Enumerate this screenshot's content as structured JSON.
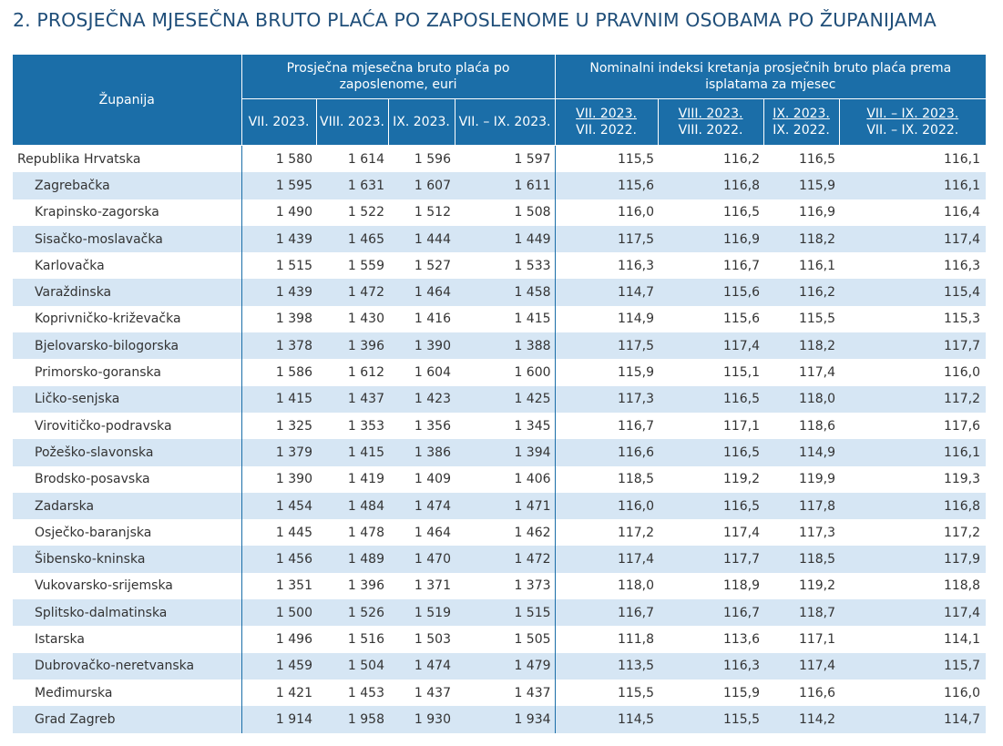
{
  "title": "2. PROSJEČNA MJESEČNA BRUTO PLAĆA PO ZAPOSLENOME U PRAVNIM OSOBAMA PO ŽUPANIJAMA",
  "colors": {
    "header_bg": "#1b6ea8",
    "stripe": "#d6e6f4",
    "title": "#1f4e79"
  },
  "header": {
    "county": "Županija",
    "group_wage": "Prosječna mjesečna bruto plaća po zaposlenome, euri",
    "group_index": "Nominalni indeksi kretanja prosječnih bruto plaća prema isplatama za mjesec",
    "wage_cols": [
      "VII. 2023.",
      "VIII. 2023.",
      "IX. 2023.",
      "VII. – IX. 2023."
    ],
    "index_cols": [
      {
        "num": "VII. 2023.",
        "den": "VII. 2022."
      },
      {
        "num": "VIII. 2023.",
        "den": "VIII. 2022."
      },
      {
        "num": "IX. 2023.",
        "den": "IX. 2022."
      },
      {
        "num": "VII. – IX. 2023.",
        "den": "VII. – IX. 2022."
      }
    ]
  },
  "rows": [
    {
      "name": "Republika Hrvatska",
      "w": [
        "1 580",
        "1 614",
        "1 596",
        "1 597"
      ],
      "i": [
        "115,5",
        "116,2",
        "116,5",
        "116,1"
      ]
    },
    {
      "name": "Zagrebačka",
      "w": [
        "1 595",
        "1 631",
        "1 607",
        "1 611"
      ],
      "i": [
        "115,6",
        "116,8",
        "115,9",
        "116,1"
      ]
    },
    {
      "name": "Krapinsko-zagorska",
      "w": [
        "1 490",
        "1 522",
        "1 512",
        "1 508"
      ],
      "i": [
        "116,0",
        "116,5",
        "116,9",
        "116,4"
      ]
    },
    {
      "name": "Sisačko-moslavačka",
      "w": [
        "1 439",
        "1 465",
        "1 444",
        "1 449"
      ],
      "i": [
        "117,5",
        "116,9",
        "118,2",
        "117,4"
      ]
    },
    {
      "name": "Karlovačka",
      "w": [
        "1 515",
        "1 559",
        "1 527",
        "1 533"
      ],
      "i": [
        "116,3",
        "116,7",
        "116,1",
        "116,3"
      ]
    },
    {
      "name": "Varaždinska",
      "w": [
        "1 439",
        "1 472",
        "1 464",
        "1 458"
      ],
      "i": [
        "114,7",
        "115,6",
        "116,2",
        "115,4"
      ]
    },
    {
      "name": "Koprivničko-križevačka",
      "w": [
        "1 398",
        "1 430",
        "1 416",
        "1 415"
      ],
      "i": [
        "114,9",
        "115,6",
        "115,5",
        "115,3"
      ]
    },
    {
      "name": "Bjelovarsko-bilogorska",
      "w": [
        "1 378",
        "1 396",
        "1 390",
        "1 388"
      ],
      "i": [
        "117,5",
        "117,4",
        "118,2",
        "117,7"
      ]
    },
    {
      "name": "Primorsko-goranska",
      "w": [
        "1 586",
        "1 612",
        "1 604",
        "1 600"
      ],
      "i": [
        "115,9",
        "115,1",
        "117,4",
        "116,0"
      ]
    },
    {
      "name": "Ličko-senjska",
      "w": [
        "1 415",
        "1 437",
        "1 423",
        "1 425"
      ],
      "i": [
        "117,3",
        "116,5",
        "118,0",
        "117,2"
      ]
    },
    {
      "name": "Virovitičko-podravska",
      "w": [
        "1 325",
        "1 353",
        "1 356",
        "1 345"
      ],
      "i": [
        "116,7",
        "117,1",
        "118,6",
        "117,6"
      ]
    },
    {
      "name": "Požeško-slavonska",
      "w": [
        "1 379",
        "1 415",
        "1 386",
        "1 394"
      ],
      "i": [
        "116,6",
        "116,5",
        "114,9",
        "116,1"
      ]
    },
    {
      "name": "Brodsko-posavska",
      "w": [
        "1 390",
        "1 419",
        "1 409",
        "1 406"
      ],
      "i": [
        "118,5",
        "119,2",
        "119,9",
        "119,3"
      ]
    },
    {
      "name": "Zadarska",
      "w": [
        "1 454",
        "1 484",
        "1 474",
        "1 471"
      ],
      "i": [
        "116,0",
        "116,5",
        "117,8",
        "116,8"
      ]
    },
    {
      "name": "Osječko-baranjska",
      "w": [
        "1 445",
        "1 478",
        "1 464",
        "1 462"
      ],
      "i": [
        "117,2",
        "117,4",
        "117,3",
        "117,2"
      ]
    },
    {
      "name": "Šibensko-kninska",
      "w": [
        "1 456",
        "1 489",
        "1 470",
        "1 472"
      ],
      "i": [
        "117,4",
        "117,7",
        "118,5",
        "117,9"
      ]
    },
    {
      "name": "Vukovarsko-srijemska",
      "w": [
        "1 351",
        "1 396",
        "1 371",
        "1 373"
      ],
      "i": [
        "118,0",
        "118,9",
        "119,2",
        "118,8"
      ]
    },
    {
      "name": "Splitsko-dalmatinska",
      "w": [
        "1 500",
        "1 526",
        "1 519",
        "1 515"
      ],
      "i": [
        "116,7",
        "116,7",
        "118,7",
        "117,4"
      ]
    },
    {
      "name": "Istarska",
      "w": [
        "1 496",
        "1 516",
        "1 503",
        "1 505"
      ],
      "i": [
        "111,8",
        "113,6",
        "117,1",
        "114,1"
      ]
    },
    {
      "name": "Dubrovačko-neretvanska",
      "w": [
        "1 459",
        "1 504",
        "1 474",
        "1 479"
      ],
      "i": [
        "113,5",
        "116,3",
        "117,4",
        "115,7"
      ]
    },
    {
      "name": "Međimurska",
      "w": [
        "1 421",
        "1 453",
        "1 437",
        "1 437"
      ],
      "i": [
        "115,5",
        "115,9",
        "116,6",
        "116,0"
      ]
    },
    {
      "name": "Grad Zagreb",
      "w": [
        "1 914",
        "1 958",
        "1 930",
        "1 934"
      ],
      "i": [
        "114,5",
        "115,5",
        "114,2",
        "114,7"
      ]
    }
  ]
}
